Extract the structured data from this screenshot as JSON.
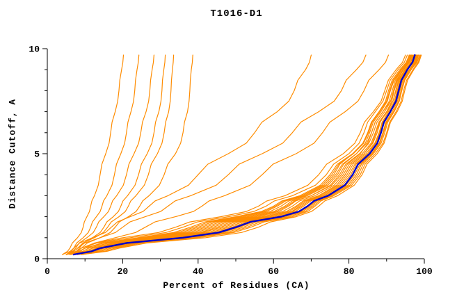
{
  "chart_data": {
    "type": "line",
    "title": "T1016-D1",
    "xlabel": "Percent of Residues (CA)",
    "ylabel": "Distance Cutoff, A",
    "xlim": [
      0,
      100
    ],
    "ylim": [
      0,
      10
    ],
    "xticks": [
      0,
      20,
      40,
      60,
      80,
      100
    ],
    "xticks_minor": [
      10,
      30,
      50,
      70,
      90
    ],
    "yticks": [
      0,
      5,
      10
    ],
    "yticks_minor": [
      1,
      2,
      3,
      4,
      6,
      7,
      8,
      9
    ],
    "grid": false,
    "legend": "none",
    "line_color": "#ff8c00",
    "highlight_color": "#0000cc",
    "axis_color": "#000000",
    "anchor_y": [
      0.2,
      0.5,
      1,
      1.5,
      2,
      2.5,
      3,
      4,
      5,
      6,
      7,
      8,
      9,
      9.7
    ],
    "model_curves": [
      [
        6,
        12,
        30,
        44,
        56,
        64,
        70,
        78,
        83,
        86,
        89,
        92,
        95,
        97
      ],
      [
        7,
        14,
        34,
        48,
        60,
        67,
        73,
        80,
        85,
        88,
        91,
        93,
        96,
        98
      ],
      [
        5,
        10,
        26,
        40,
        52,
        61,
        68,
        76,
        81,
        85,
        88,
        91,
        94,
        96
      ],
      [
        8,
        16,
        38,
        52,
        63,
        70,
        75,
        82,
        86,
        89,
        92,
        94,
        96.5,
        98.5
      ],
      [
        6,
        11,
        28,
        42,
        54,
        63,
        69,
        77,
        82,
        86,
        89,
        91.5,
        94,
        96.5
      ],
      [
        7,
        13,
        32,
        46,
        58,
        66,
        72,
        79,
        84,
        87.5,
        90,
        92.5,
        95,
        97.5
      ],
      [
        5,
        9,
        22,
        36,
        48,
        58,
        65,
        74,
        80,
        84,
        87,
        90,
        93,
        95.5
      ],
      [
        9,
        18,
        40,
        54,
        65,
        71,
        76,
        83,
        87,
        90,
        92.5,
        94.5,
        97,
        99
      ],
      [
        6,
        12,
        31,
        45,
        57,
        65,
        71,
        78.5,
        83.5,
        87,
        90,
        92,
        94.5,
        96.8
      ],
      [
        7,
        14,
        35,
        49,
        61,
        68,
        74,
        81,
        85.5,
        88.5,
        91,
        93,
        95.5,
        97.8
      ],
      [
        5,
        10,
        24,
        38,
        50,
        60,
        67,
        75,
        81,
        85,
        88,
        90.5,
        93.5,
        96
      ],
      [
        8,
        15,
        36,
        50,
        62,
        69,
        74.5,
        81.5,
        86,
        89,
        91.5,
        93.5,
        96,
        98.2
      ],
      [
        6,
        11,
        27,
        41,
        53,
        62,
        68.5,
        76.5,
        82,
        85.5,
        88.5,
        91,
        94,
        96.2
      ],
      [
        7,
        13,
        33,
        47,
        59,
        66.5,
        72.5,
        79.5,
        84.5,
        88,
        90.5,
        92.8,
        95.2,
        97.6
      ],
      [
        5,
        9,
        20,
        34,
        46,
        56,
        63,
        72,
        78.5,
        83,
        86.5,
        89.5,
        92.5,
        95
      ],
      [
        8,
        17,
        39,
        53,
        64,
        70.5,
        75.5,
        82.5,
        86.5,
        89.5,
        92,
        94,
        96.5,
        98.8
      ],
      [
        6,
        12,
        29,
        43,
        55,
        63.5,
        70,
        77.5,
        82.8,
        86.5,
        89.5,
        91.8,
        94.3,
        96.6
      ],
      [
        7,
        14,
        34,
        48,
        60,
        67.5,
        73.5,
        80.5,
        85,
        88.2,
        90.8,
        93,
        95.5,
        97.9
      ],
      [
        5,
        10,
        25,
        39,
        51,
        60.5,
        67.5,
        75.5,
        81.2,
        85.2,
        88.2,
        90.8,
        93.8,
        96.3
      ],
      [
        6,
        13,
        31,
        46,
        58,
        66,
        72,
        79,
        84,
        87.2,
        90.2,
        92.4,
        94.8,
        97.2
      ],
      [
        9,
        19,
        42,
        56,
        66,
        72,
        77,
        83.5,
        87.5,
        90.2,
        92.8,
        94.8,
        97.2,
        99.2
      ],
      [
        7,
        15,
        37,
        51,
        62.5,
        69.5,
        75,
        82,
        86.2,
        89.2,
        91.8,
        93.8,
        96.2,
        98.4
      ],
      [
        5,
        8,
        14,
        20,
        26,
        32,
        38,
        48,
        57,
        65,
        72,
        78,
        82,
        84.5
      ],
      [
        6,
        10,
        18,
        26,
        34,
        41,
        47,
        57,
        66,
        73,
        79,
        84,
        88,
        90.5
      ],
      [
        4,
        7,
        12,
        17,
        22,
        27,
        32,
        40,
        48,
        55,
        61,
        65.5,
        68.5,
        70
      ],
      [
        4,
        6,
        8,
        9.5,
        10.5,
        11.5,
        12.5,
        14,
        15.5,
        16.8,
        18,
        19,
        19.7,
        20.2
      ],
      [
        5,
        7,
        9.5,
        11.5,
        13,
        14.5,
        15.8,
        17.8,
        19.5,
        21,
        22.2,
        23.2,
        23.8,
        24.3
      ],
      [
        5,
        7.5,
        10.5,
        13,
        15,
        16.8,
        18.4,
        21,
        23,
        24.8,
        26.2,
        27.2,
        27.8,
        28.3
      ],
      [
        6,
        8.5,
        12,
        15,
        17.5,
        19.5,
        21.3,
        24.2,
        26.5,
        28.3,
        29.6,
        30.4,
        30.9,
        31.3
      ],
      [
        5,
        8,
        12.5,
        16,
        19,
        21.5,
        23.5,
        26.8,
        29.2,
        31,
        32.2,
        32.8,
        33.2,
        33.5
      ],
      [
        6,
        9,
        14,
        18,
        21.5,
        24.5,
        27,
        31,
        34,
        36,
        37.2,
        37.8,
        38.2,
        38.6
      ]
    ],
    "highlight_curve": [
      7,
      14,
      36,
      50,
      62,
      69,
      74.5,
      81,
      85.5,
      88.5,
      91,
      93.2,
      95.5,
      97.5
    ]
  }
}
